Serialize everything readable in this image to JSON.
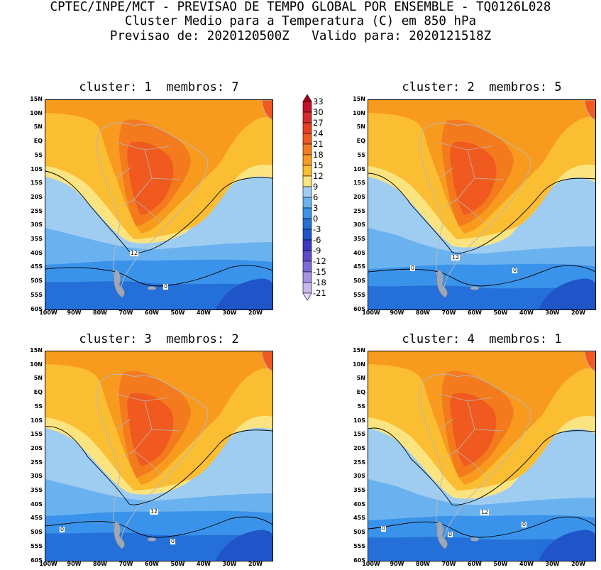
{
  "header": {
    "line1": "CPTEC/INPE/MCT - PREVISAO DE TEMPO GLOBAL POR ENSEMBLE - TQ0126L028",
    "line2": "Cluster Medio para a Temperatura (C) em 850 hPa",
    "line3": "Previsao de: 2020120500Z   Valido para: 2020121518Z"
  },
  "panels": [
    {
      "title": "cluster: 1  membros: 7",
      "contour_labels": [
        "12",
        "0"
      ]
    },
    {
      "title": "cluster: 2  membros: 5",
      "contour_labels": [
        "12",
        "0",
        "0"
      ]
    },
    {
      "title": "cluster: 3  membros: 2",
      "contour_labels": [
        "12",
        "0",
        "0"
      ]
    },
    {
      "title": "cluster: 4  membros: 1",
      "contour_labels": [
        "12",
        "0",
        "0",
        "0"
      ]
    }
  ],
  "axes": {
    "lat_labels": [
      "15N",
      "10N",
      "5N",
      "EQ",
      "5S",
      "10S",
      "15S",
      "20S",
      "25S",
      "30S",
      "35S",
      "40S",
      "45S",
      "50S",
      "55S",
      "60S"
    ],
    "lon_labels": [
      "100W",
      "90W",
      "80W",
      "70W",
      "60W",
      "50W",
      "40W",
      "30W",
      "20W"
    ]
  },
  "colorbar": {
    "labels": [
      "33",
      "30",
      "27",
      "24",
      "21",
      "18",
      "15",
      "12",
      "9",
      "6",
      "3",
      "0",
      "-3",
      "-6",
      "-9",
      "-12",
      "-15",
      "-18",
      "-21"
    ],
    "colors": [
      "#a50015",
      "#c8102a",
      "#d82a2a",
      "#e8401e",
      "#f05a1e",
      "#f47a1e",
      "#f79a1e",
      "#fbbd32",
      "#fbe480",
      "#9fcdf2",
      "#6ab2ef",
      "#3a93ea",
      "#2570d8",
      "#1f55c8",
      "#3a3ac4",
      "#5a4ccc",
      "#7d6bdb",
      "#a693e6",
      "#c9b8f0",
      "#e2d8f8"
    ]
  }
}
